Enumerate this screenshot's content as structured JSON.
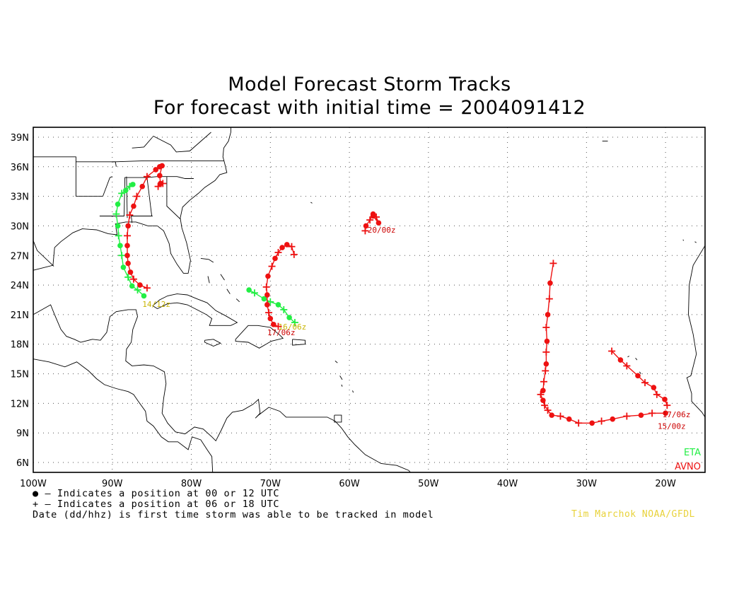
{
  "title": {
    "line1": "Model Forecast Storm Tracks",
    "line2": "For forecast with initial time = 2004091412"
  },
  "map": {
    "lon_range": [
      -100,
      -15
    ],
    "lat_range": [
      5,
      40
    ],
    "lon_ticks": [
      {
        "lon": -100,
        "label": "100W"
      },
      {
        "lon": -90,
        "label": "90W"
      },
      {
        "lon": -80,
        "label": "80W"
      },
      {
        "lon": -70,
        "label": "70W"
      },
      {
        "lon": -60,
        "label": "60W"
      },
      {
        "lon": -50,
        "label": "50W"
      },
      {
        "lon": -40,
        "label": "40W"
      },
      {
        "lon": -30,
        "label": "30W"
      },
      {
        "lon": -20,
        "label": "20W"
      }
    ],
    "lat_ticks": [
      {
        "lat": 6,
        "label": "6N"
      },
      {
        "lat": 9,
        "label": "9N"
      },
      {
        "lat": 12,
        "label": "12N"
      },
      {
        "lat": 15,
        "label": "15N"
      },
      {
        "lat": 18,
        "label": "18N"
      },
      {
        "lat": 21,
        "label": "21N"
      },
      {
        "lat": 24,
        "label": "24N"
      },
      {
        "lat": 27,
        "label": "27N"
      },
      {
        "lat": 30,
        "label": "30N"
      },
      {
        "lat": 33,
        "label": "33N"
      },
      {
        "lat": 36,
        "label": "36N"
      },
      {
        "lat": 39,
        "label": "39N"
      }
    ],
    "grid": "dotted",
    "land_outline_color": "#000000"
  },
  "legend": [
    {
      "model": "ETA",
      "color": "#22ee44"
    },
    {
      "model": "AVNO",
      "color": "#ee1111"
    }
  ],
  "tracks": [
    {
      "model": "ETA",
      "color": "#22ee44",
      "label": "14/12z",
      "label_at": [
        -86.2,
        21.8
      ],
      "points": [
        [
          -86.0,
          22.9,
          "dot"
        ],
        [
          -86.8,
          23.5,
          "plus"
        ],
        [
          -87.5,
          23.9,
          "dot"
        ],
        [
          -88.0,
          24.8,
          "plus"
        ],
        [
          -88.6,
          25.8,
          "dot"
        ],
        [
          -88.8,
          27.0,
          "plus"
        ],
        [
          -89.0,
          28.0,
          "dot"
        ],
        [
          -89.2,
          29.0,
          "plus"
        ],
        [
          -89.3,
          30.0,
          "dot"
        ],
        [
          -89.5,
          31.2,
          "plus"
        ],
        [
          -89.3,
          32.2,
          "dot"
        ],
        [
          -88.8,
          33.3,
          "plus"
        ],
        [
          -88.3,
          33.6,
          "dot"
        ],
        [
          -87.8,
          34.0,
          "plus"
        ],
        [
          -87.4,
          34.2,
          "dot"
        ]
      ]
    },
    {
      "model": "AVNO",
      "color": "#ee1111",
      "label": "",
      "label_at": null,
      "points": [
        [
          -85.6,
          23.7,
          "plus"
        ],
        [
          -86.5,
          24.0,
          "dot"
        ],
        [
          -87.3,
          24.6,
          "plus"
        ],
        [
          -87.7,
          25.3,
          "dot"
        ],
        [
          -88.0,
          26.2,
          "dot"
        ],
        [
          -88.1,
          27.0,
          "dot"
        ],
        [
          -88.1,
          28.0,
          "dot"
        ],
        [
          -88.1,
          29.0,
          "plus"
        ],
        [
          -88.0,
          30.0,
          "dot"
        ],
        [
          -87.8,
          31.1,
          "plus"
        ],
        [
          -87.3,
          32.0,
          "dot"
        ],
        [
          -86.9,
          33.0,
          "plus"
        ],
        [
          -86.2,
          34.0,
          "dot"
        ],
        [
          -85.6,
          35.0,
          "plus"
        ],
        [
          -84.5,
          35.7,
          "dot"
        ],
        [
          -84.0,
          36.0,
          "dot"
        ],
        [
          -83.7,
          36.1,
          "dot"
        ],
        [
          -84.0,
          35.1,
          "dot"
        ],
        [
          -83.9,
          34.3,
          "dot"
        ],
        [
          -84.2,
          34.0,
          "plus"
        ],
        [
          -83.6,
          34.3,
          "plus"
        ]
      ]
    },
    {
      "model": "ETA",
      "color": "#22ee44",
      "label": "16/06z",
      "label_at": [
        -69.0,
        19.5
      ],
      "points": [
        [
          -66.9,
          20.2,
          "plus"
        ],
        [
          -67.6,
          20.7,
          "dot"
        ],
        [
          -68.3,
          21.5,
          "plus"
        ],
        [
          -69.0,
          22.0,
          "dot"
        ],
        [
          -70.0,
          22.3,
          "plus"
        ],
        [
          -70.8,
          22.6,
          "dot"
        ],
        [
          -72.0,
          23.2,
          "plus"
        ],
        [
          -72.7,
          23.5,
          "dot"
        ]
      ]
    },
    {
      "model": "AVNO",
      "color": "#ee1111",
      "label": "17/06z",
      "label_at": [
        -70.4,
        18.9
      ],
      "points": [
        [
          -69.0,
          19.8,
          "plus"
        ],
        [
          -69.6,
          20.0,
          "dot"
        ],
        [
          -70.0,
          20.6,
          "dot"
        ],
        [
          -70.2,
          21.2,
          "plus"
        ],
        [
          -70.4,
          22.0,
          "dot"
        ],
        [
          -70.4,
          23.0,
          "dot"
        ],
        [
          -70.5,
          23.8,
          "plus"
        ],
        [
          -70.3,
          24.9,
          "dot"
        ],
        [
          -69.8,
          25.9,
          "plus"
        ],
        [
          -69.4,
          26.7,
          "dot"
        ],
        [
          -69.0,
          27.3,
          "plus"
        ],
        [
          -68.5,
          27.8,
          "dot"
        ],
        [
          -67.9,
          28.1,
          "dot"
        ],
        [
          -67.3,
          27.9,
          "plus"
        ],
        [
          -67.0,
          27.1,
          "plus"
        ]
      ]
    },
    {
      "model": "AVNO",
      "color": "#ee1111",
      "label": "20/00z",
      "label_at": [
        -57.7,
        29.3
      ],
      "points": [
        [
          -58.0,
          29.5,
          "plus"
        ],
        [
          -57.9,
          30.0,
          "dot"
        ],
        [
          -57.4,
          30.6,
          "plus"
        ],
        [
          -57.0,
          31.2,
          "dot"
        ],
        [
          -56.6,
          30.9,
          "plus"
        ],
        [
          -56.3,
          30.3,
          "dot"
        ],
        [
          -57.0,
          31.0,
          "dot"
        ]
      ]
    },
    {
      "model": "AVNO",
      "color": "#ee1111",
      "label": "15/00z",
      "label_at": [
        -21.0,
        9.4
      ],
      "points": [
        [
          -20.0,
          11.0,
          "dot"
        ],
        [
          -21.7,
          11.0,
          "plus"
        ],
        [
          -23.1,
          10.8,
          "dot"
        ],
        [
          -24.9,
          10.7,
          "plus"
        ],
        [
          -26.7,
          10.4,
          "dot"
        ],
        [
          -28.1,
          10.2,
          "plus"
        ],
        [
          -29.3,
          10.0,
          "dot"
        ],
        [
          -31.0,
          10.0,
          "plus"
        ],
        [
          -32.2,
          10.4,
          "dot"
        ],
        [
          -33.3,
          10.7,
          "plus"
        ],
        [
          -34.4,
          10.8,
          "dot"
        ],
        [
          -34.9,
          11.3,
          "plus"
        ],
        [
          -35.3,
          11.8,
          "plus"
        ],
        [
          -35.5,
          12.3,
          "dot"
        ],
        [
          -35.8,
          12.9,
          "plus"
        ],
        [
          -35.5,
          13.3,
          "dot"
        ],
        [
          -35.4,
          14.2,
          "plus"
        ],
        [
          -35.2,
          15.3,
          "plus"
        ],
        [
          -35.1,
          16.0,
          "dot"
        ],
        [
          -35.1,
          17.2,
          "plus"
        ],
        [
          -35.0,
          18.3,
          "dot"
        ],
        [
          -35.1,
          19.7,
          "plus"
        ],
        [
          -34.9,
          21.0,
          "dot"
        ],
        [
          -34.7,
          22.6,
          "plus"
        ],
        [
          -34.6,
          24.2,
          "dot"
        ],
        [
          -34.2,
          26.2,
          "plus"
        ]
      ]
    },
    {
      "model": "AVNO",
      "color": "#ee1111",
      "label": "17/06z",
      "label_at": [
        -20.4,
        10.6
      ],
      "points": [
        [
          -19.8,
          11.8,
          "plus"
        ],
        [
          -20.1,
          12.4,
          "dot"
        ],
        [
          -21.1,
          12.9,
          "plus"
        ],
        [
          -21.5,
          13.6,
          "dot"
        ],
        [
          -22.6,
          14.1,
          "plus"
        ],
        [
          -23.5,
          14.8,
          "dot"
        ],
        [
          -24.9,
          15.8,
          "plus"
        ],
        [
          -25.7,
          16.4,
          "dot"
        ],
        [
          -26.8,
          17.3,
          "plus"
        ]
      ]
    }
  ],
  "notes": {
    "line1": "● — Indicates a position at 00 or 12 UTC",
    "line2": "+ — Indicates a position at 06 or 18 UTC",
    "line3": "Date (dd/hhz) is first time storm was able to be tracked in model"
  },
  "credit": "Tim Marchok NOAA/GFDL"
}
